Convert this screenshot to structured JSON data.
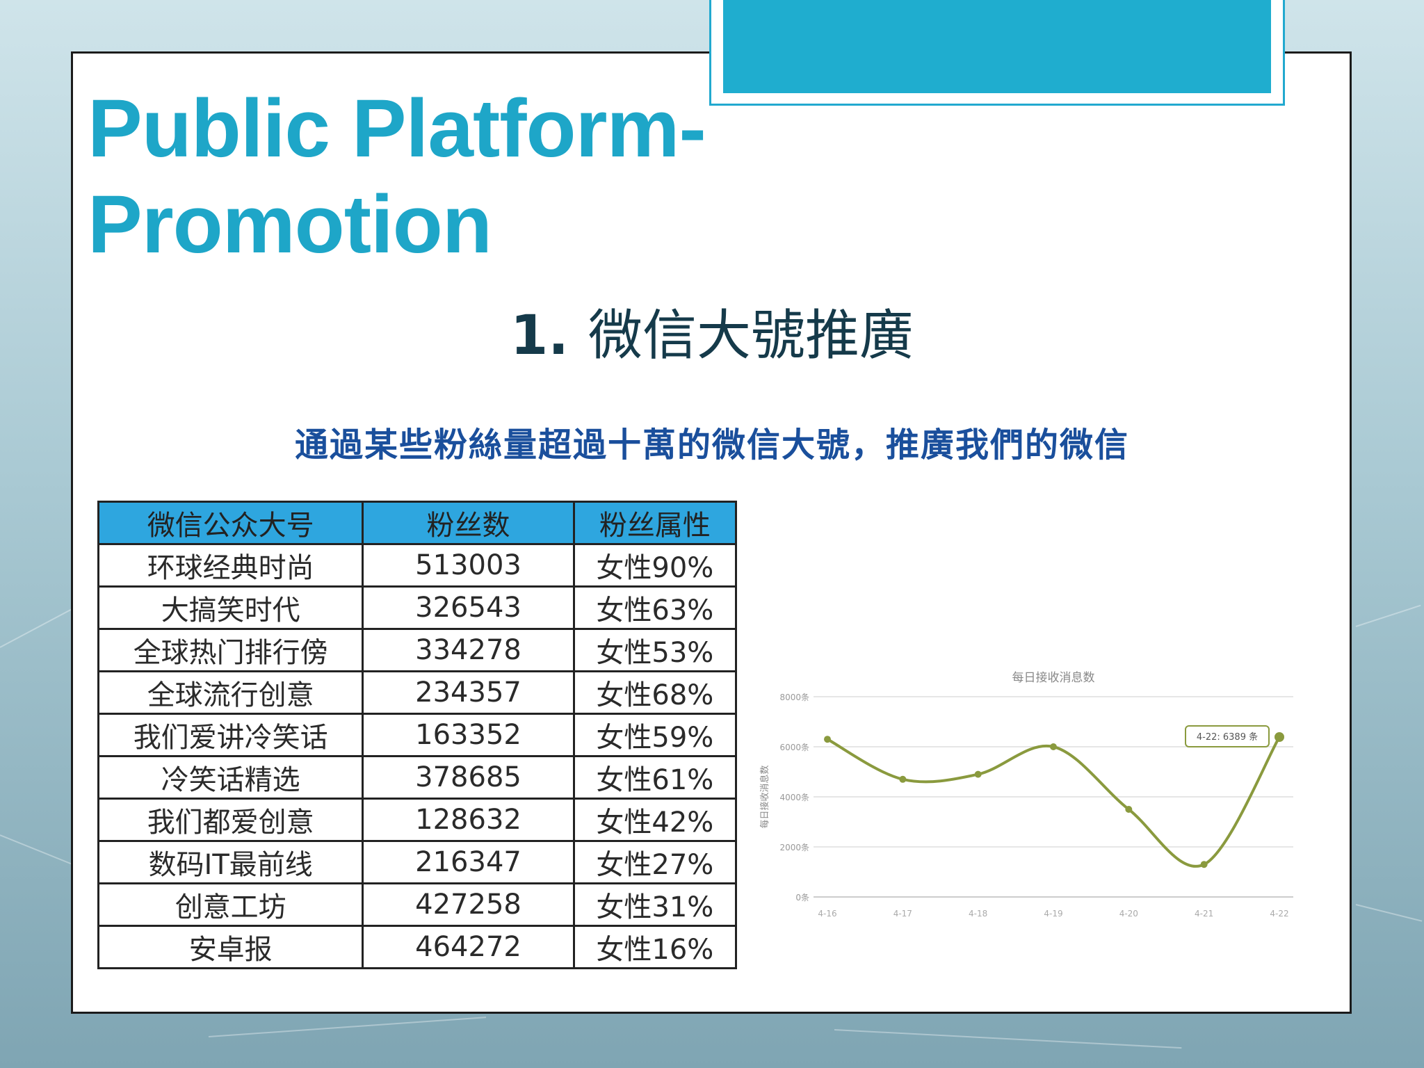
{
  "slide": {
    "title_line1": "Public Platform-",
    "title_line2": "Promotion",
    "subtitle_number": "1.",
    "subtitle_text": "微信大號推廣",
    "description": "通過某些粉絲量超過十萬的微信大號，推廣我們的微信"
  },
  "table": {
    "headers": [
      "微信公众大号",
      "粉丝数",
      "粉丝属性"
    ],
    "rows": [
      [
        "环球经典时尚",
        "513003",
        "女性90%"
      ],
      [
        "大搞笑时代",
        "326543",
        "女性63%"
      ],
      [
        "全球热门排行傍",
        "334278",
        "女性53%"
      ],
      [
        "全球流行创意",
        "234357",
        "女性68%"
      ],
      [
        "我们爱讲冷笑话",
        "163352",
        "女性59%"
      ],
      [
        "冷笑话精选",
        "378685",
        "女性61%"
      ],
      [
        "我们都爱创意",
        "128632",
        "女性42%"
      ],
      [
        "数码IT最前线",
        "216347",
        "女性27%"
      ],
      [
        "创意工坊",
        "427258",
        "女性31%"
      ],
      [
        "安卓报",
        "464272",
        "女性16%"
      ]
    ]
  },
  "chart_data": {
    "type": "line",
    "title": "每日接收消息数",
    "ylabel": "每日接收消息数",
    "ytick_labels": [
      "0条",
      "2000条",
      "4000条",
      "6000条",
      "8000条"
    ],
    "ylim": [
      0,
      8000
    ],
    "categories": [
      "4-16",
      "4-17",
      "4-18",
      "4-19",
      "4-20",
      "4-21",
      "4-22"
    ],
    "values": [
      6300,
      4700,
      4900,
      6000,
      3500,
      1300,
      6389
    ],
    "tooltip": "4-22: 6389 条",
    "line_color": "#8a9a3e",
    "grid": true
  },
  "colors": {
    "accent": "#1fadcf",
    "title": "#1ea6c8",
    "table_header": "#2ea6df",
    "description": "#1a4f9c"
  }
}
